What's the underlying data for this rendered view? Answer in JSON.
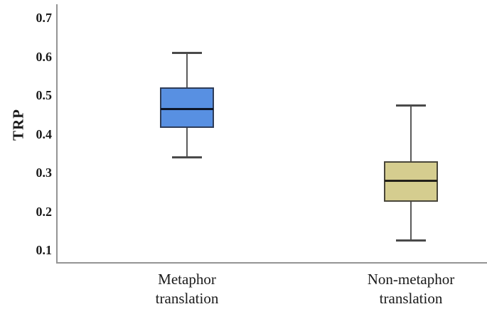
{
  "chart_data": {
    "type": "boxplot",
    "title": "",
    "xlabel": "",
    "ylabel": "TRP",
    "ylim": [
      0.067,
      0.731
    ],
    "grid": false,
    "legend": "none",
    "background": "#ffffff",
    "yticks": [
      {
        "label": "0.7",
        "value": 0.7
      },
      {
        "label": "0.6",
        "value": 0.6
      },
      {
        "label": "0.5",
        "value": 0.5
      },
      {
        "label": "0.4",
        "value": 0.4
      },
      {
        "label": "0.3",
        "value": 0.3
      },
      {
        "label": "0.2",
        "value": 0.2
      },
      {
        "label": "0.1",
        "value": 0.1
      }
    ],
    "categories": [
      "Metaphor\ntranslation",
      "Non-metaphor\ntranslation"
    ],
    "series": [
      {
        "name": "Metaphor translation",
        "whisker_low": 0.34,
        "q1": 0.415,
        "median": 0.465,
        "q3": 0.52,
        "whisker_high": 0.61,
        "fill": "#5890E2",
        "border": "#2e3c58",
        "median_color": "#0d1526"
      },
      {
        "name": "Non-metaphor translation",
        "whisker_low": 0.125,
        "q1": 0.225,
        "median": 0.28,
        "q3": 0.33,
        "whisker_high": 0.475,
        "fill": "#D5CD8F",
        "border": "#49463a",
        "median_color": "#23211a"
      }
    ],
    "colors": {
      "axis": "#949494",
      "whisker": "#5a5a5a",
      "text": "#1a1a1a"
    }
  }
}
